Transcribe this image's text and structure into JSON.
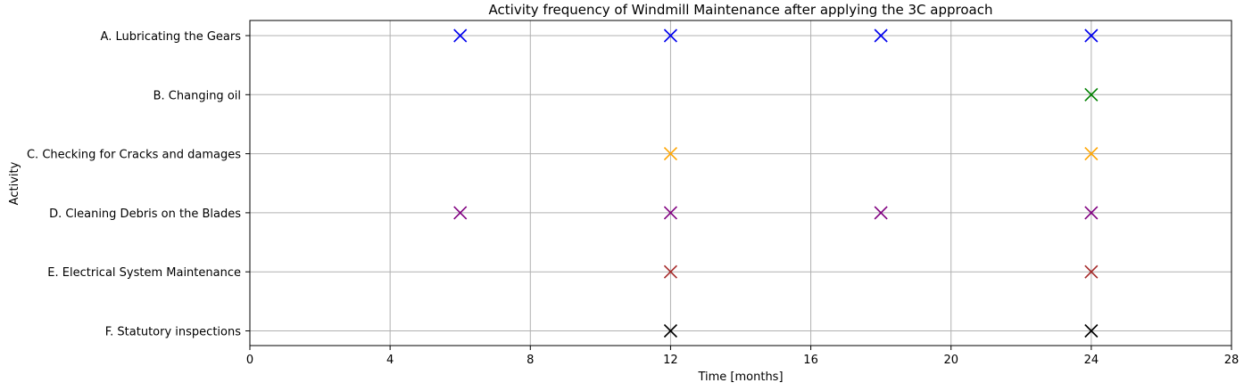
{
  "chart_data": {
    "type": "scatter",
    "title": "Activity frequency of Windmill Maintenance after applying the 3C approach",
    "xlabel": "Time [months]",
    "ylabel": "Activity",
    "xlim": [
      0,
      28
    ],
    "xticks": [
      0,
      4,
      8,
      12,
      16,
      20,
      24,
      28
    ],
    "grid": true,
    "marker": "x",
    "categories": [
      "A. Lubricating the Gears",
      "B. Changing oil",
      "C. Checking for Cracks and damages",
      "D. Cleaning Debris on the Blades",
      "E. Electrical System Maintenance",
      "F. Statutory inspections"
    ],
    "series": [
      {
        "category": "A. Lubricating the Gears",
        "color": "#0000ee",
        "x": [
          6,
          12,
          18,
          24
        ]
      },
      {
        "category": "B. Changing oil",
        "color": "#008000",
        "x": [
          24
        ]
      },
      {
        "category": "C. Checking for Cracks and damages",
        "color": "#ffa500",
        "x": [
          12,
          24
        ]
      },
      {
        "category": "D. Cleaning Debris on the Blades",
        "color": "#800080",
        "x": [
          6,
          12,
          18,
          24
        ]
      },
      {
        "category": "E. Electrical System Maintenance",
        "color": "#a52a2a",
        "x": [
          12,
          24
        ]
      },
      {
        "category": "F. Statutory inspections",
        "color": "#000000",
        "x": [
          12,
          24
        ]
      }
    ]
  }
}
